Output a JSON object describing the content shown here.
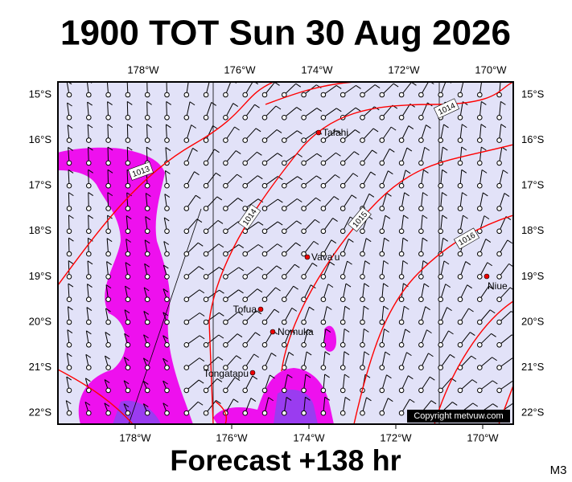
{
  "header": {
    "title": "1900 TOT Sun 30 Aug 2026"
  },
  "map": {
    "longitude_labels": [
      "178°W",
      "176°W",
      "174°W",
      "172°W",
      "170°W"
    ],
    "latitude_labels": [
      "15°S",
      "16°S",
      "17°S",
      "18°S",
      "19°S",
      "20°S",
      "21°S",
      "22°S"
    ],
    "places": [
      "Tafahi",
      "Vava'u",
      "Tofua",
      "Nomuka",
      "Tongatapu",
      "Niue"
    ],
    "isobar_labels": [
      1014,
      1013,
      1014,
      1015,
      1016
    ],
    "copyright": "Copyright metvuw.com"
  },
  "footer": {
    "forecast": "Forecast +138 hr",
    "code": "M3"
  }
}
